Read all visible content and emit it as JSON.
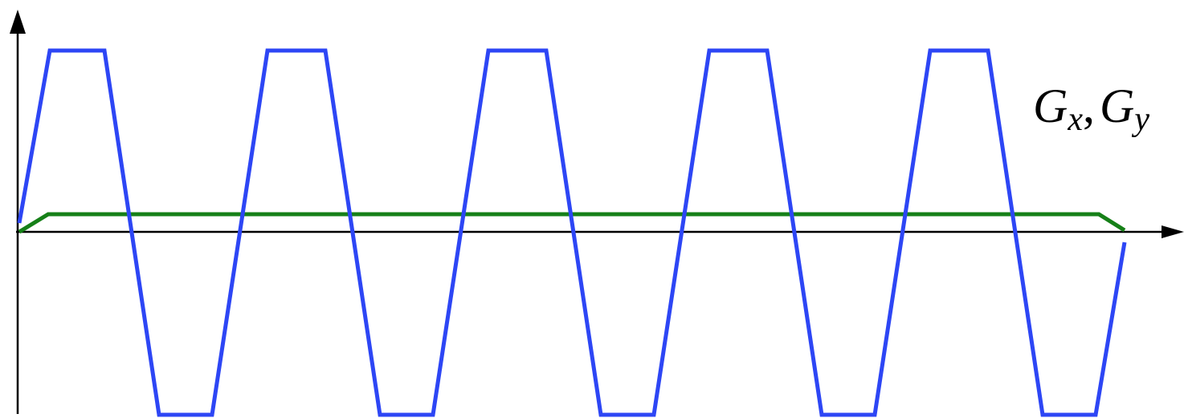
{
  "diagram": {
    "label": {
      "main": "G",
      "sub1": "x",
      "separator": ",",
      "main2": "G",
      "sub2": "y"
    },
    "colors": {
      "readout_gradient": "#2d46f5",
      "phase_gradient": "#168018",
      "axes": "#000000"
    }
  }
}
